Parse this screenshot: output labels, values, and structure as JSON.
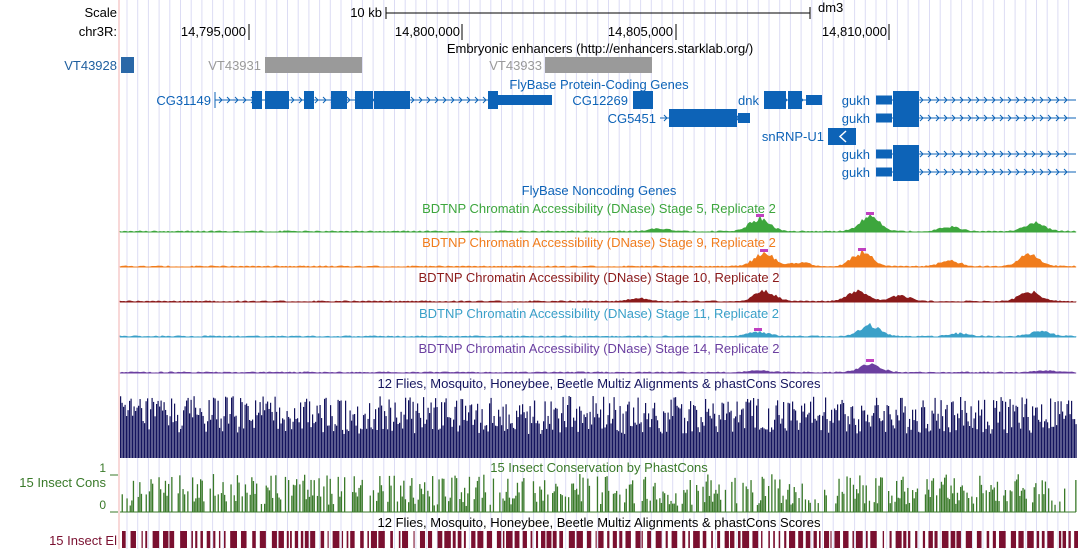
{
  "ruler": {
    "scale_label": "Scale",
    "chrom_label": "chr3R:",
    "scalebar_label": "10 kb",
    "assembly": "dm3",
    "ticks": [
      "14,795,000",
      "14,800,000",
      "14,805,000",
      "14,810,000"
    ]
  },
  "tracks": {
    "enhancers": {
      "title": "Embryonic enhancers (http://enhancers.starklab.org/)",
      "items": [
        {
          "label": "VT43928",
          "color": "#1f5f9f"
        },
        {
          "label": "VT43931",
          "color": "#9a9a9a"
        },
        {
          "label": "VT43933",
          "color": "#9a9a9a"
        }
      ]
    },
    "protein_coding": {
      "title": "FlyBase Protein-Coding Genes",
      "genes": [
        "CG31149",
        "CG12269",
        "CG5451",
        "dnk",
        "snRNP-U1",
        "gukh",
        "gukh",
        "gukh",
        "gukh"
      ],
      "color": "#0d63b7"
    },
    "noncoding": {
      "title": "FlyBase Noncoding Genes"
    },
    "dnase": [
      {
        "title": "BDTNP Chromatin Accessibility (DNase) Stage 5, Replicate 2",
        "color": "#3da63d"
      },
      {
        "title": "BDTNP Chromatin Accessibility (DNase) Stage 9, Replicate 2",
        "color": "#f07c1c"
      },
      {
        "title": "BDTNP Chromatin Accessibility (DNase) Stage 10, Replicate 2",
        "color": "#8b1a1a"
      },
      {
        "title": "BDTNP Chromatin Accessibility (DNase) Stage 11, Replicate 2",
        "color": "#3aa0c8"
      },
      {
        "title": "BDTNP Chromatin Accessibility (DNase) Stage 14, Replicate 2",
        "color": "#6b3fa0"
      }
    ],
    "multiz": {
      "title": "12 Flies, Mosquito, Honeybee, Beetle Multiz Alignments & phastCons Scores",
      "color": "#14145e"
    },
    "phastcons": {
      "title": "15 Insect Conservation by PhastCons",
      "side_label": "15 Insect Cons",
      "axis_max": "1",
      "axis_min": "0",
      "color": "#3a7a2a"
    },
    "elements": {
      "title": "12 Flies, Mosquito, Honeybee, Beetle Multiz Alignments & phastCons Scores",
      "side_label": "15 Insect El",
      "color": "#7a1030"
    }
  }
}
